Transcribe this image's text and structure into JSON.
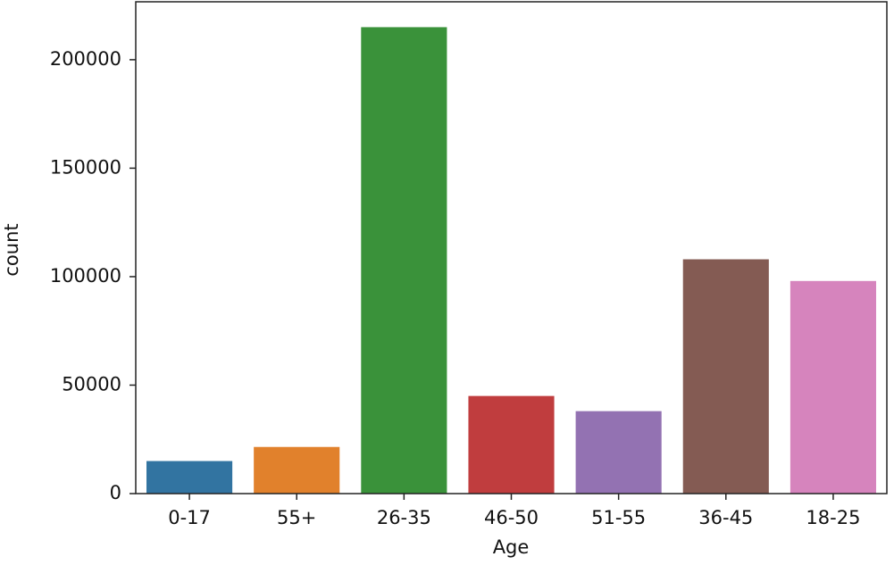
{
  "chart_data": {
    "type": "bar",
    "x_label": "Age",
    "y_label": "count",
    "categories": [
      "0-17",
      "55+",
      "26-35",
      "46-50",
      "51-55",
      "36-45",
      "18-25"
    ],
    "values": [
      15000,
      21500,
      215000,
      45000,
      38000,
      108000,
      98000
    ],
    "colors": [
      "#3274a1",
      "#e1812c",
      "#3a923a",
      "#c03d3e",
      "#9372b2",
      "#845b53",
      "#d684bd"
    ],
    "ylim": [
      0,
      226700
    ],
    "yticks": [
      0,
      50000,
      100000,
      150000,
      200000
    ],
    "grid": false
  }
}
